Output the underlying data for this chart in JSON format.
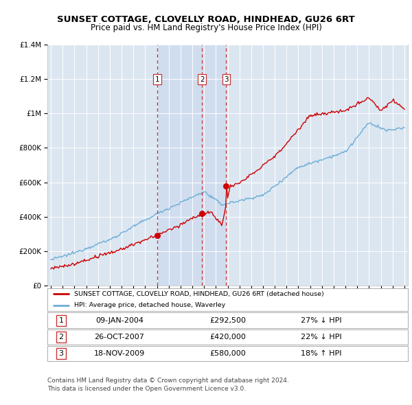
{
  "title": "SUNSET COTTAGE, CLOVELLY ROAD, HINDHEAD, GU26 6RT",
  "subtitle": "Price paid vs. HM Land Registry's House Price Index (HPI)",
  "legend_line1": "SUNSET COTTAGE, CLOVELLY ROAD, HINDHEAD, GU26 6RT (detached house)",
  "legend_line2": "HPI: Average price, detached house, Waverley",
  "footer1": "Contains HM Land Registry data © Crown copyright and database right 2024.",
  "footer2": "This data is licensed under the Open Government Licence v3.0.",
  "sales": [
    {
      "num": 1,
      "date": "09-JAN-2004",
      "price": 292500,
      "hpi_diff": "27% ↓ HPI",
      "year": 2004.03
    },
    {
      "num": 2,
      "date": "26-OCT-2007",
      "price": 420000,
      "hpi_diff": "22% ↓ HPI",
      "year": 2007.82
    },
    {
      "num": 3,
      "date": "18-NOV-2009",
      "price": 580000,
      "hpi_diff": "18% ↑ HPI",
      "year": 2009.88
    }
  ],
  "hpi_color": "#6baed6",
  "price_color": "#cc0000",
  "vline_color": "#cc3333",
  "shade_color": "#c8d8ee",
  "background_color": "#dce6f1",
  "ylim": [
    0,
    1400000
  ],
  "xlim": [
    1994.7,
    2025.3
  ],
  "yticks": [
    0,
    200000,
    400000,
    600000,
    800000,
    1000000,
    1200000,
    1400000
  ]
}
